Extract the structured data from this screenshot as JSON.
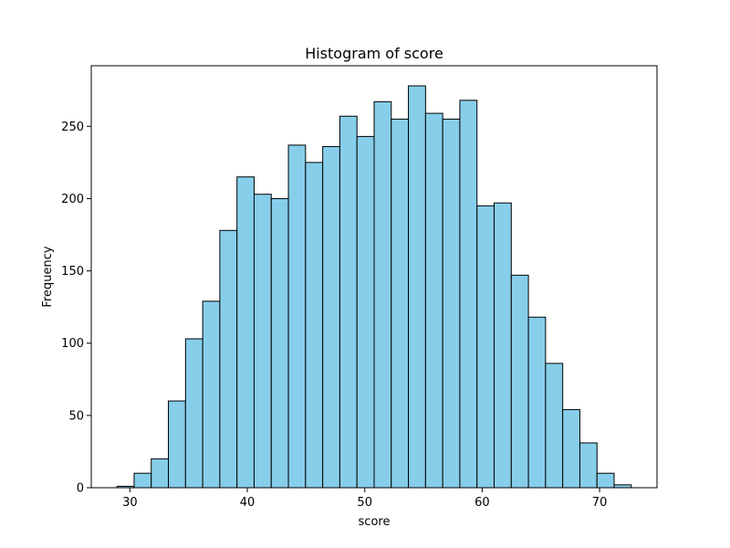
{
  "chart_data": {
    "type": "bar",
    "subtype": "histogram",
    "title": "Histogram of score",
    "xlabel": "score",
    "ylabel": "Frequency",
    "bin_edges": [
      28.9,
      30.36,
      31.82,
      33.28,
      34.74,
      36.2,
      37.66,
      39.12,
      40.58,
      42.04,
      43.5,
      44.96,
      46.42,
      47.88,
      49.34,
      50.8,
      52.26,
      53.72,
      55.18,
      56.64,
      58.1,
      59.56,
      61.02,
      62.48,
      63.94,
      65.4,
      66.86,
      68.32,
      69.78,
      71.24,
      72.7
    ],
    "values": [
      1,
      10,
      20,
      60,
      103,
      129,
      178,
      215,
      203,
      200,
      237,
      225,
      236,
      257,
      243,
      267,
      255,
      278,
      259,
      255,
      268,
      195,
      197,
      147,
      118,
      86,
      54,
      31,
      10,
      2
    ],
    "xlim": [
      26.71,
      74.89
    ],
    "ylim": [
      0,
      291.9
    ],
    "xticks": [
      30,
      40,
      50,
      60,
      70
    ],
    "yticks": [
      0,
      50,
      100,
      150,
      200,
      250
    ],
    "grid": false,
    "colors": {
      "bar_fill": "#87CEEB",
      "bar_edge": "#000000",
      "axes": "#000000",
      "background": "#ffffff"
    }
  }
}
